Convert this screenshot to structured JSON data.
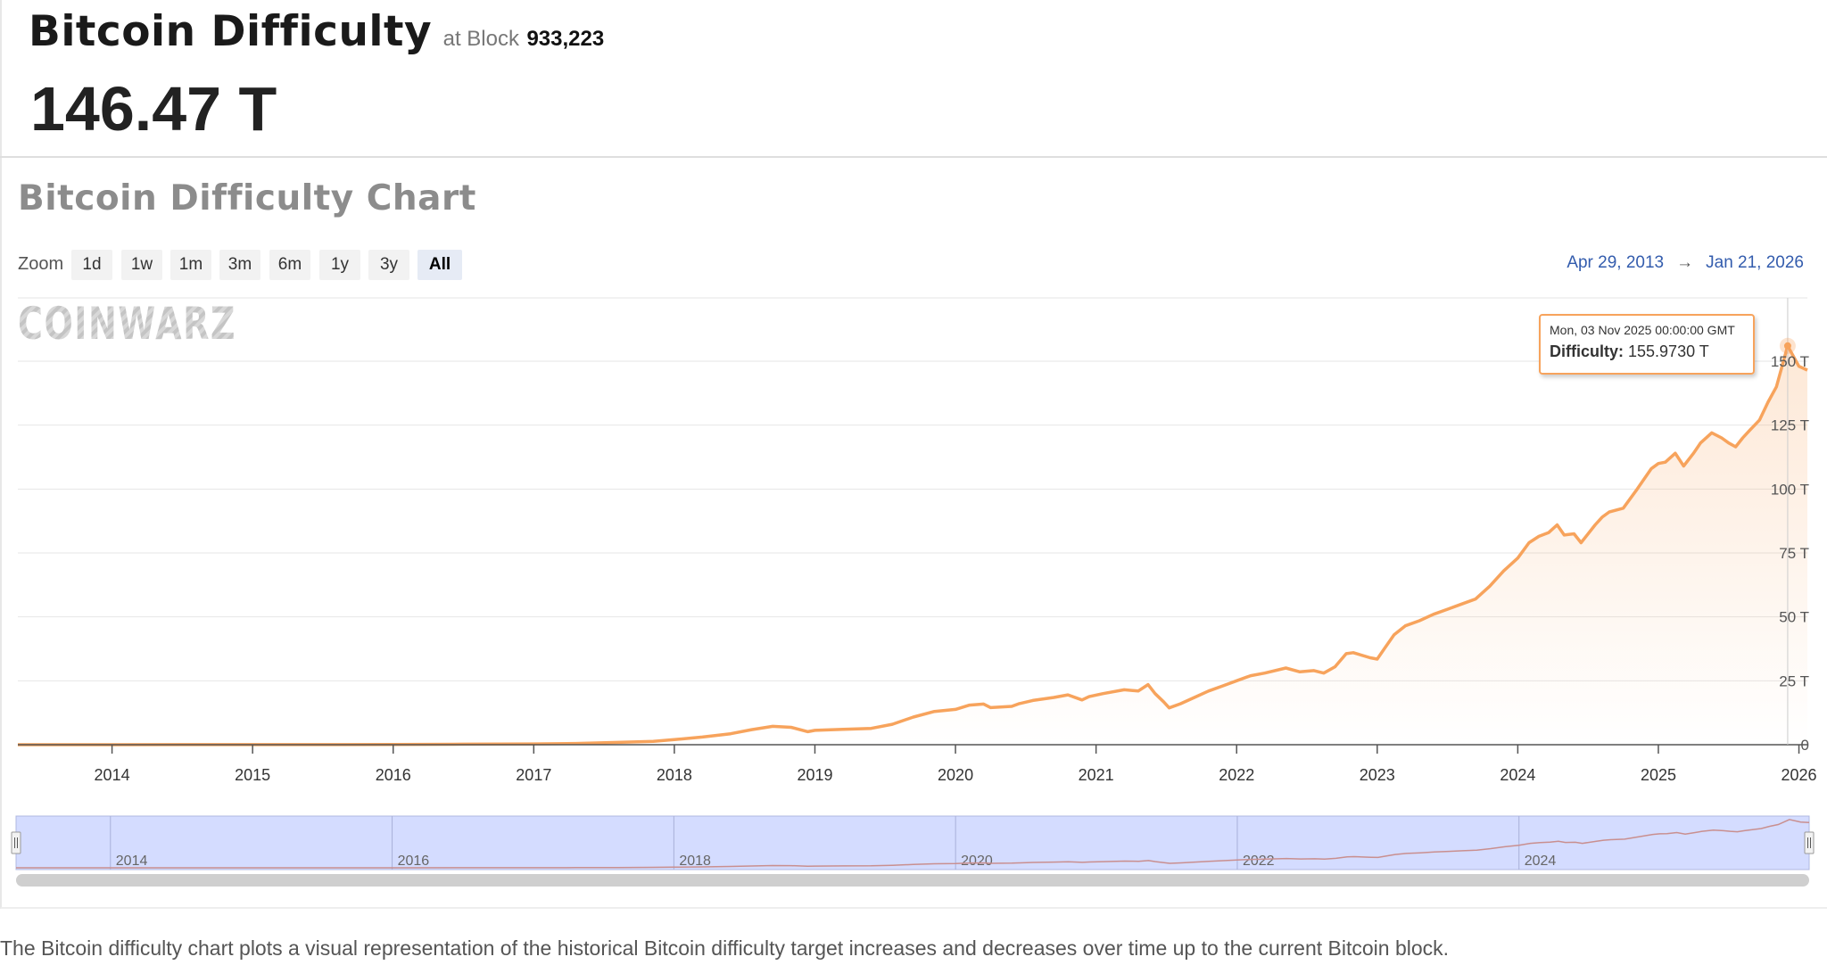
{
  "header": {
    "title": "Bitcoin Difficulty",
    "at_label": "at Block",
    "block": "933,223",
    "current_value": "146.47 T"
  },
  "chart_title": "Bitcoin Difficulty Chart",
  "zoom": {
    "label": "Zoom",
    "buttons": [
      "1d",
      "1w",
      "1m",
      "3m",
      "6m",
      "1y",
      "3y",
      "All"
    ],
    "active": "All"
  },
  "range": {
    "from": "Apr 29, 2013",
    "arrow": "→",
    "to": "Jan 21, 2026"
  },
  "watermark": "COINWARZ",
  "tooltip": {
    "date": "Mon, 03 Nov 2025 00:00:00 GMT",
    "key": "Difficulty:",
    "value": "155.9730 T"
  },
  "footer": "The Bitcoin difficulty chart plots a visual representation of the historical Bitcoin difficulty target increases and decreases over time up to the current Bitcoin block.",
  "colors": {
    "line": "#f7a35c",
    "navigator_fill": "#ccd6ff",
    "range_link": "#335cad"
  },
  "chart_data": {
    "type": "area",
    "title": "Bitcoin Difficulty Chart",
    "y_unit": "T",
    "xlim": [
      2013.33,
      2026.06
    ],
    "ylim": [
      0,
      150
    ],
    "y_ticks": [
      0,
      25,
      50,
      75,
      100,
      125,
      150
    ],
    "y_tick_labels": [
      "0",
      "25 T",
      "50 T",
      "75 T",
      "100 T",
      "125 T",
      "150 T"
    ],
    "x_ticks": [
      2014,
      2015,
      2016,
      2017,
      2018,
      2019,
      2020,
      2021,
      2022,
      2023,
      2024,
      2025,
      2026
    ],
    "x_tick_labels": [
      "2014",
      "2015",
      "2016",
      "2017",
      "2018",
      "2019",
      "2020",
      "2021",
      "2022",
      "2023",
      "2024",
      "2025",
      "2026"
    ],
    "navigator_ticks": [
      "2014",
      "2016",
      "2018",
      "2020",
      "2022",
      "2024"
    ],
    "grid": true,
    "series": [
      {
        "x": [
          2013.33,
          2014.0,
          2014.5,
          2015.0,
          2015.5,
          2016.0,
          2016.5,
          2017.0,
          2017.3,
          2017.6,
          2017.85,
          2018.0,
          2018.2,
          2018.4,
          2018.55,
          2018.7,
          2018.83,
          2018.95,
          2019.0,
          2019.2,
          2019.4,
          2019.55,
          2019.7,
          2019.85,
          2020.0,
          2020.1,
          2020.2,
          2020.25,
          2020.4,
          2020.45,
          2020.55,
          2020.7,
          2020.8,
          2020.9,
          2020.95,
          2021.05,
          2021.2,
          2021.3,
          2021.37,
          2021.42,
          2021.48,
          2021.52,
          2021.6,
          2021.7,
          2021.8,
          2021.9,
          2022.0,
          2022.1,
          2022.2,
          2022.35,
          2022.45,
          2022.55,
          2022.62,
          2022.7,
          2022.78,
          2022.83,
          2022.95,
          2023.0,
          2023.05,
          2023.12,
          2023.2,
          2023.3,
          2023.4,
          2023.5,
          2023.6,
          2023.7,
          2023.8,
          2023.9,
          2024.0,
          2024.08,
          2024.15,
          2024.22,
          2024.28,
          2024.33,
          2024.4,
          2024.45,
          2024.55,
          2024.6,
          2024.65,
          2024.75,
          2024.85,
          2024.95,
          2025.0,
          2025.05,
          2025.12,
          2025.18,
          2025.25,
          2025.3,
          2025.38,
          2025.45,
          2025.5,
          2025.55,
          2025.6,
          2025.65,
          2025.72,
          2025.78,
          2025.84,
          2025.92,
          2026.0,
          2026.06
        ],
        "values": [
          0.01,
          0.002,
          0.02,
          0.04,
          0.05,
          0.1,
          0.2,
          0.3,
          0.5,
          0.9,
          1.3,
          2.0,
          3.0,
          4.3,
          5.9,
          7.2,
          6.8,
          5.1,
          5.6,
          6.0,
          6.4,
          8.0,
          10.8,
          13.0,
          13.8,
          15.5,
          15.9,
          14.5,
          15.0,
          16.0,
          17.3,
          18.5,
          19.5,
          17.5,
          18.8,
          20.0,
          21.5,
          21.0,
          23.5,
          20.0,
          16.8,
          14.4,
          16.0,
          18.5,
          21.0,
          23.0,
          25.0,
          27.0,
          28.0,
          30.0,
          28.5,
          29.0,
          28.0,
          30.5,
          35.6,
          36.0,
          34.0,
          33.5,
          37.5,
          43.0,
          46.5,
          48.5,
          51.0,
          53.0,
          55.0,
          57.0,
          62.0,
          68.0,
          73.0,
          79.0,
          81.5,
          83.0,
          86.0,
          82.0,
          82.5,
          79.0,
          86.0,
          89.0,
          91.0,
          92.5,
          100.0,
          108.0,
          110.0,
          110.5,
          114.0,
          109.0,
          114.0,
          118.0,
          122.0,
          120.0,
          118.0,
          116.5,
          120.0,
          123.0,
          127.0,
          134.0,
          140.0,
          156.0,
          148.0,
          146.5
        ]
      }
    ]
  }
}
